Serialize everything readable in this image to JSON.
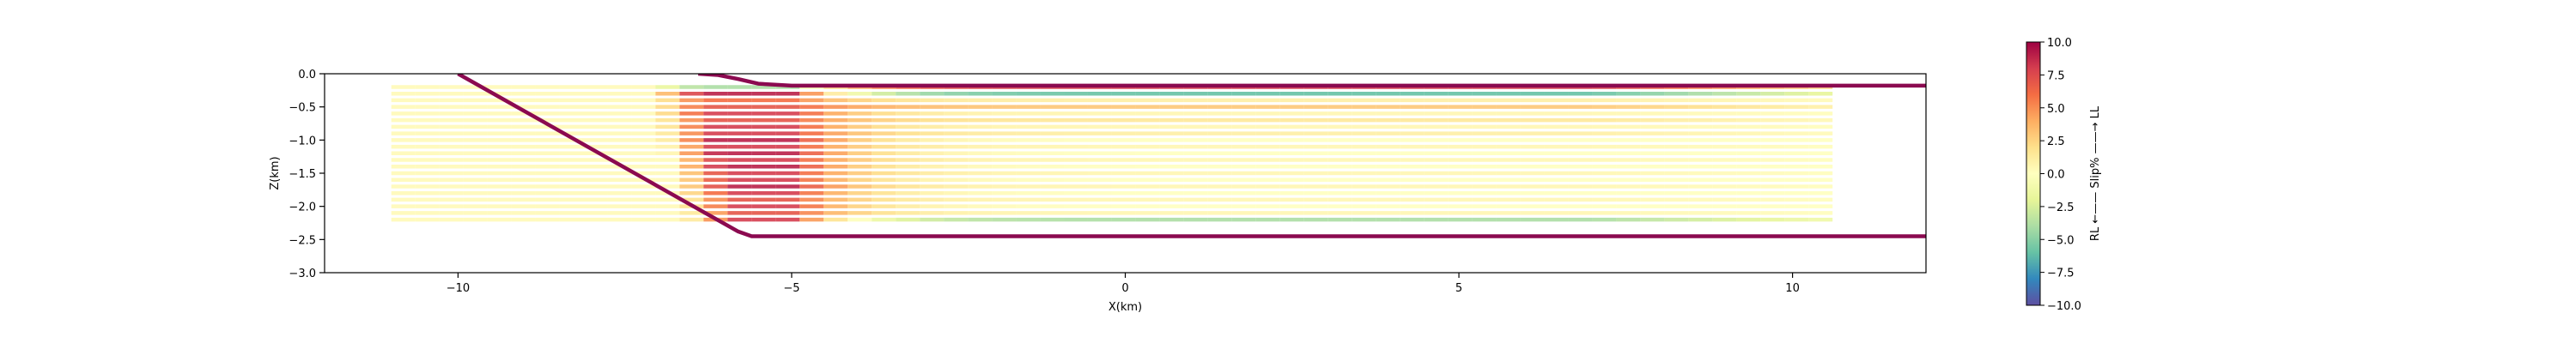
{
  "chart_data": {
    "type": "line",
    "xlabel": "X(km)",
    "ylabel": "Z(km)",
    "xlim": [
      -12,
      12
    ],
    "ylim": [
      -3,
      0
    ],
    "grid": false,
    "x_ticks": [
      -10,
      -5,
      0,
      5,
      10
    ],
    "x_tick_labels": [
      "−10",
      "−5",
      "0",
      "5",
      "10"
    ],
    "y_ticks": [
      0,
      -0.5,
      -1,
      -1.5,
      -2,
      -2.5,
      -3
    ],
    "y_tick_labels": [
      "0.0",
      "−0.5",
      "−1.0",
      "−1.5",
      "−2.0",
      "−2.5",
      "−3.0"
    ],
    "fault_color": "#8b0a50",
    "fault_lines": [
      {
        "x": [
          -10.0,
          -5.8,
          -5.6,
          -5.2,
          12.0
        ],
        "y": [
          0.0,
          -2.38,
          -2.45,
          -2.45,
          -2.45
        ]
      },
      {
        "x": [
          -6.4,
          -6.1,
          -5.8,
          -5.5,
          -5.0,
          12.0
        ],
        "y": [
          0.0,
          -0.02,
          -0.08,
          -0.15,
          -0.18,
          -0.18
        ]
      }
    ],
    "slip_layers": {
      "x_start": -11.0,
      "x_end": 10.6,
      "depths": [
        -0.2,
        -0.3,
        -0.4,
        -0.5,
        -0.6,
        -0.7,
        -0.8,
        -0.9,
        -1.0,
        -1.1,
        -1.2,
        -1.3,
        -1.4,
        -1.5,
        -1.6,
        -1.7,
        -1.8,
        -1.9,
        -2.0,
        -2.1,
        -2.2
      ],
      "slip_near_bend": [
        -4,
        9,
        6,
        7,
        8,
        7,
        8,
        8,
        9,
        8,
        9,
        8,
        9,
        8,
        8,
        9,
        8,
        7,
        8,
        7,
        8
      ],
      "slip_far": [
        8,
        -6,
        1,
        3,
        0.5,
        1.5,
        0.5,
        1,
        0,
        0.5,
        0,
        0.5,
        0,
        0.5,
        0,
        0.5,
        0,
        0.5,
        0,
        0.5,
        -4
      ],
      "bend_x_range": [
        -6.4,
        -5.0
      ]
    },
    "colorbar": {
      "label": "RL ←—— Slip% ——→ LL",
      "min": -10,
      "max": 10,
      "ticks": [
        10,
        7.5,
        5,
        2.5,
        0,
        -2.5,
        -5,
        -7.5,
        -10
      ],
      "tick_labels": [
        "10.0",
        "7.5",
        "5.0",
        "2.5",
        "0.0",
        "−2.5",
        "−5.0",
        "−7.5",
        "−10.0"
      ],
      "colormap": "Spectral_r",
      "stops": [
        "#5e4fa2",
        "#3288bd",
        "#66c2a5",
        "#abdda4",
        "#e6f598",
        "#ffffbf",
        "#fee08b",
        "#fdae61",
        "#f46d43",
        "#d53e4f",
        "#9e0142"
      ]
    }
  }
}
